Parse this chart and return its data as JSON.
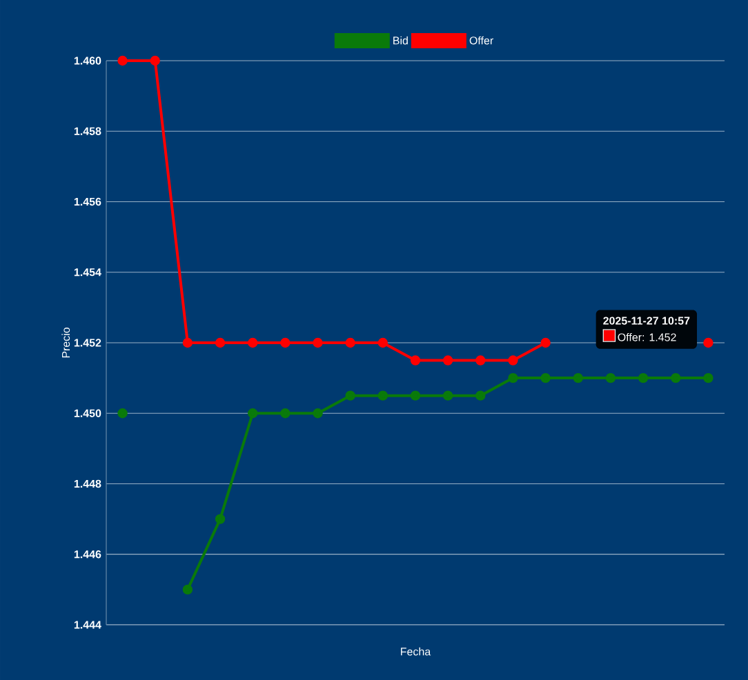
{
  "chart_data": {
    "type": "line",
    "categories": [
      null,
      null,
      null,
      null,
      null,
      null,
      null,
      null,
      null,
      null,
      null,
      null,
      null,
      null,
      null,
      null,
      null,
      null,
      null
    ],
    "series": [
      {
        "name": "Bid",
        "color": "#0a7a0a",
        "values": [
          1.45,
          null,
          1.445,
          1.447,
          1.45,
          1.45,
          1.45,
          1.4505,
          1.4505,
          1.4505,
          1.4505,
          1.4505,
          1.451,
          1.451,
          1.451,
          1.451,
          1.451,
          1.451,
          1.451
        ]
      },
      {
        "name": "Offer",
        "color": "#ff0000",
        "values": [
          1.46,
          1.46,
          1.452,
          1.452,
          1.452,
          1.452,
          1.452,
          1.452,
          1.452,
          1.4515,
          1.4515,
          1.4515,
          1.4515,
          1.452,
          null,
          null,
          null,
          null,
          1.452
        ]
      }
    ],
    "ylim": [
      1.444,
      1.46
    ],
    "yticks": [
      {
        "value": 1.444,
        "label": "1.444"
      },
      {
        "value": 1.446,
        "label": "1.446"
      },
      {
        "value": 1.448,
        "label": "1.448"
      },
      {
        "value": 1.45,
        "label": "1.450"
      },
      {
        "value": 1.452,
        "label": "1.452"
      },
      {
        "value": 1.454,
        "label": "1.454"
      },
      {
        "value": 1.456,
        "label": "1.456"
      },
      {
        "value": 1.458,
        "label": "1.458"
      },
      {
        "value": 1.46,
        "label": "1.460"
      }
    ],
    "xlabel": "Fecha",
    "ylabel": "Precio",
    "legend": "top",
    "grid": "y",
    "marker": "circle",
    "annotations": [
      "2025-11-27 10:57",
      "Offer: 1.452"
    ]
  }
}
